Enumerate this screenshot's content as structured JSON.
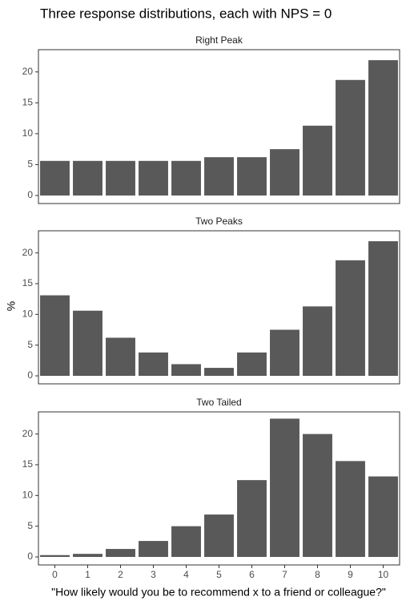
{
  "title": "Three response distributions, each with NPS = 0",
  "x_label": "\"How likely would you be to recommend x to a friend or colleague?\"",
  "y_label": "%",
  "chart_data": [
    {
      "type": "bar",
      "title": "Right Peak",
      "color": "#595959",
      "categories": [
        "0",
        "1",
        "2",
        "3",
        "4",
        "5",
        "6",
        "7",
        "8",
        "9",
        "10"
      ],
      "values": [
        5.6,
        5.6,
        5.6,
        5.6,
        5.6,
        6.2,
        6.2,
        7.5,
        11.3,
        18.7,
        21.9
      ],
      "ylim": [
        -1.3,
        23.6
      ],
      "yticks": [
        0,
        5,
        10,
        15,
        20
      ]
    },
    {
      "type": "bar",
      "title": "Two Peaks",
      "color": "#595959",
      "categories": [
        "0",
        "1",
        "2",
        "3",
        "4",
        "5",
        "6",
        "7",
        "8",
        "9",
        "10"
      ],
      "values": [
        13.1,
        10.6,
        6.2,
        3.8,
        1.9,
        1.3,
        3.8,
        7.5,
        11.3,
        18.8,
        21.9
      ],
      "ylim": [
        -1.3,
        23.6
      ],
      "yticks": [
        0,
        5,
        10,
        15,
        20
      ]
    },
    {
      "type": "bar",
      "title": "Two Tailed",
      "color": "#595959",
      "categories": [
        "0",
        "1",
        "2",
        "3",
        "4",
        "5",
        "6",
        "7",
        "8",
        "9",
        "10"
      ],
      "values": [
        0.3,
        0.5,
        1.3,
        2.6,
        5.0,
        6.9,
        12.5,
        22.5,
        20.0,
        15.6,
        13.1
      ],
      "ylim": [
        -1.3,
        23.6
      ],
      "yticks": [
        0,
        5,
        10,
        15,
        20
      ]
    }
  ]
}
